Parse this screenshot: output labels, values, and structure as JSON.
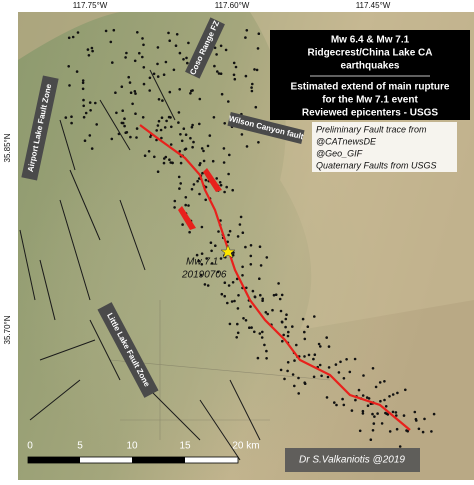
{
  "graticule": {
    "longitudes": [
      "117.75°W",
      "117.60°W",
      "117.45°W"
    ],
    "latitudes": [
      "35.85°N",
      "35.70°N"
    ]
  },
  "title_box": {
    "lines": [
      "Mw 6.4 & Mw 7.1",
      "Ridgecrest/China Lake CA",
      "earthquakes",
      "Estimated extend of main rupture",
      "for the Mw 7.1 event",
      "Reviewed epicenters - USGS"
    ]
  },
  "legend": {
    "lines": [
      "Preliminary Fault trace from",
      "@CATnewsDE",
      "@Geo_GIF",
      "Quaternary Faults from USGS"
    ]
  },
  "fault_labels": [
    "Coso Range FZ",
    "Airport Lake Fault Zone",
    "Wilson Canyon fault",
    "Little Lake Fault Zone"
  ],
  "epicenter": {
    "magnitude": "Mw 7.1",
    "date": "20190706"
  },
  "scale_bar": {
    "ticks": [
      "0",
      "5",
      "10",
      "15",
      "20 km"
    ]
  },
  "credit": "Dr S.Valkaniotis @2019"
}
